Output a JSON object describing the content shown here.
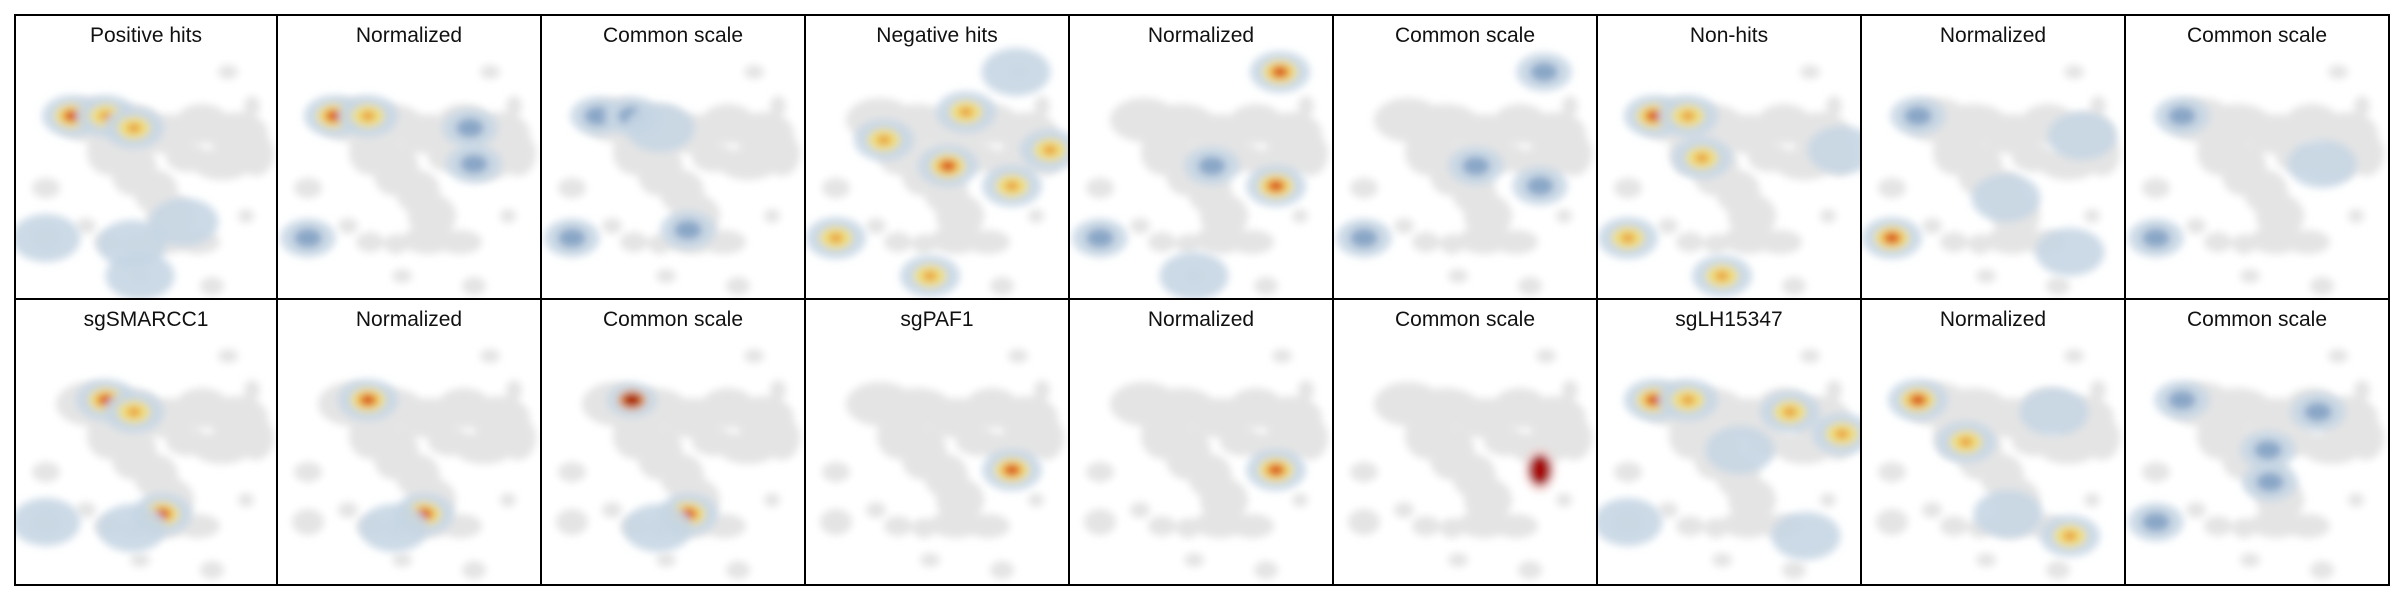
{
  "colors": {
    "background": "#ffffff",
    "border": "#000000",
    "embedding_base": "#e4e4e4",
    "density_low": "#c6d6e4",
    "density_blue": "#7f9fc3",
    "density_mid": "#f2e07a",
    "density_high": "#e7942e",
    "density_peak": "#d42a17",
    "density_max": "#a50f0f"
  },
  "rows": [
    {
      "panels": [
        {
          "title": "Positive hits",
          "style": "raw",
          "hotspots": [
            {
              "cell": "c01",
              "level": "peak"
            },
            {
              "cell": "c02",
              "level": "mid"
            },
            {
              "cell": "c03",
              "level": "mid"
            },
            {
              "cell": "c14",
              "level": "low"
            },
            {
              "cell": "c15",
              "level": "low"
            },
            {
              "cell": "c20",
              "level": "low"
            },
            {
              "cell": "c21",
              "level": "low"
            }
          ]
        },
        {
          "title": "Normalized",
          "style": "normalized",
          "hotspots": [
            {
              "cell": "c01",
              "level": "peak"
            },
            {
              "cell": "c02",
              "level": "mid"
            },
            {
              "cell": "c05",
              "level": "blue"
            },
            {
              "cell": "c10",
              "level": "blue"
            },
            {
              "cell": "c14",
              "level": "blue"
            }
          ]
        },
        {
          "title": "Common scale",
          "style": "common",
          "hotspots": [
            {
              "cell": "c01",
              "level": "blue"
            },
            {
              "cell": "c02",
              "level": "blue"
            },
            {
              "cell": "c03",
              "level": "low"
            },
            {
              "cell": "c14",
              "level": "blue"
            },
            {
              "cell": "c17",
              "level": "blue"
            }
          ]
        }
      ]
    },
    {
      "panels": [
        {
          "title": "Negative hits",
          "style": "raw",
          "hotspots": [
            {
              "cell": "c07",
              "level": "mid"
            },
            {
              "cell": "c08",
              "level": "peak"
            },
            {
              "cell": "c04",
              "level": "mid"
            },
            {
              "cell": "c12",
              "level": "mid"
            },
            {
              "cell": "c18",
              "level": "mid"
            },
            {
              "cell": "c14",
              "level": "mid"
            },
            {
              "cell": "c20",
              "level": "mid"
            },
            {
              "cell": "c16",
              "level": "low"
            }
          ]
        },
        {
          "title": "Normalized",
          "style": "normalized",
          "hotspots": [
            {
              "cell": "c16",
              "level": "peak"
            },
            {
              "cell": "c18",
              "level": "peak"
            },
            {
              "cell": "c08",
              "level": "blue"
            },
            {
              "cell": "c14",
              "level": "blue"
            },
            {
              "cell": "c20",
              "level": "low"
            }
          ]
        },
        {
          "title": "Common scale",
          "style": "common",
          "hotspots": [
            {
              "cell": "c16",
              "level": "blue"
            },
            {
              "cell": "c18",
              "level": "blue"
            },
            {
              "cell": "c08",
              "level": "blue"
            },
            {
              "cell": "c14",
              "level": "blue"
            }
          ]
        }
      ]
    },
    {
      "panels": [
        {
          "title": "Non-hits",
          "style": "raw",
          "hotspots": [
            {
              "cell": "c01",
              "level": "peak"
            },
            {
              "cell": "c02",
              "level": "mid"
            },
            {
              "cell": "c09",
              "level": "mid"
            },
            {
              "cell": "c12",
              "level": "low"
            },
            {
              "cell": "c14",
              "level": "mid"
            },
            {
              "cell": "c20",
              "level": "mid"
            }
          ]
        },
        {
          "title": "Normalized",
          "style": "normalized",
          "hotspots": [
            {
              "cell": "c14",
              "level": "peak"
            },
            {
              "cell": "c01",
              "level": "blue"
            },
            {
              "cell": "c06",
              "level": "low"
            },
            {
              "cell": "c11",
              "level": "low"
            },
            {
              "cell": "c19",
              "level": "low"
            }
          ]
        },
        {
          "title": "Common scale",
          "style": "common",
          "hotspots": [
            {
              "cell": "c01",
              "level": "blue"
            },
            {
              "cell": "c14",
              "level": "blue"
            },
            {
              "cell": "c10",
              "level": "low"
            }
          ]
        }
      ]
    },
    {
      "panels": [
        {
          "title": "sgSMARCC1",
          "style": "raw",
          "hotspots": [
            {
              "cell": "c02",
              "level": "peak"
            },
            {
              "cell": "c03",
              "level": "mid"
            },
            {
              "cell": "c17",
              "level": "peak"
            },
            {
              "cell": "c14",
              "level": "low"
            },
            {
              "cell": "c15",
              "level": "low"
            }
          ]
        },
        {
          "title": "Normalized",
          "style": "normalized",
          "hotspots": [
            {
              "cell": "c02",
              "level": "peak"
            },
            {
              "cell": "c17",
              "level": "peak"
            },
            {
              "cell": "c15",
              "level": "low"
            }
          ]
        },
        {
          "title": "Common scale",
          "style": "common",
          "hotspots": [
            {
              "cell": "c02",
              "level": "max"
            },
            {
              "cell": "c17",
              "level": "peak"
            },
            {
              "cell": "c15",
              "level": "low"
            }
          ]
        }
      ]
    },
    {
      "panels": [
        {
          "title": "sgPAF1",
          "style": "raw",
          "hotspots": [
            {
              "cell": "c18",
              "level": "peak"
            }
          ]
        },
        {
          "title": "Normalized",
          "style": "normalized",
          "hotspots": [
            {
              "cell": "c18",
              "level": "peak"
            }
          ]
        },
        {
          "title": "Common scale",
          "style": "common",
          "hotspots": [
            {
              "cell": "c18",
              "level": "blob"
            }
          ]
        }
      ]
    },
    {
      "panels": [
        {
          "title": "sgLH15347",
          "style": "raw",
          "hotspots": [
            {
              "cell": "c01",
              "level": "peak"
            },
            {
              "cell": "c02",
              "level": "mid"
            },
            {
              "cell": "c05",
              "level": "mid"
            },
            {
              "cell": "c08",
              "level": "low"
            },
            {
              "cell": "c12",
              "level": "mid"
            },
            {
              "cell": "c14",
              "level": "low"
            },
            {
              "cell": "c19",
              "level": "low"
            }
          ]
        },
        {
          "title": "Normalized",
          "style": "normalized",
          "hotspots": [
            {
              "cell": "c01",
              "level": "peak"
            },
            {
              "cell": "c05",
              "level": "low"
            },
            {
              "cell": "c09",
              "level": "mid"
            },
            {
              "cell": "c17",
              "level": "low"
            },
            {
              "cell": "c19",
              "level": "mid"
            }
          ]
        },
        {
          "title": "Common scale",
          "style": "common",
          "hotspots": [
            {
              "cell": "c01",
              "level": "blue"
            },
            {
              "cell": "c05",
              "level": "blue"
            },
            {
              "cell": "c08",
              "level": "blue"
            },
            {
              "cell": "c11",
              "level": "blue"
            },
            {
              "cell": "c14",
              "level": "blue"
            }
          ]
        }
      ]
    }
  ]
}
